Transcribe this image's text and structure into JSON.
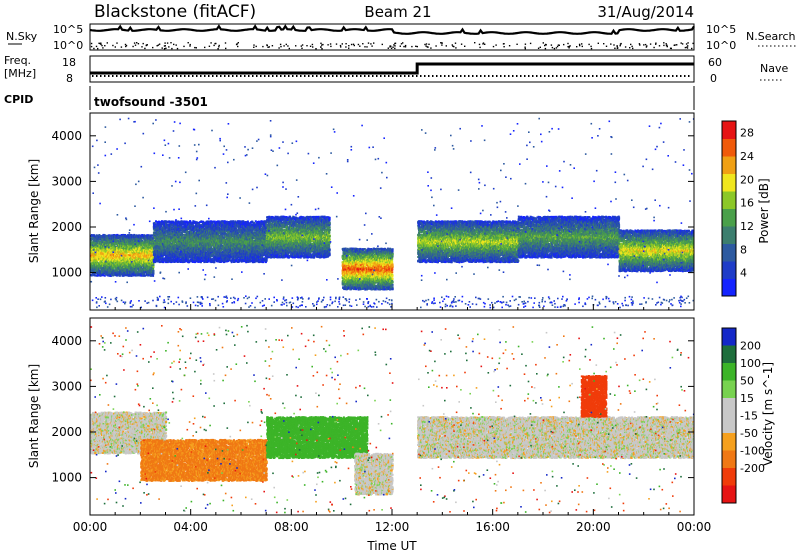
{
  "header": {
    "title": "Blackstone (fitACF)",
    "beam": "Beam 21",
    "date": "31/Aug/2014"
  },
  "summary": {
    "nsky_label": "N.Sky",
    "nsky_ticks": [
      "10^5",
      "10^0"
    ],
    "nsearch_label": "N.Search",
    "nsearch_ticks": [
      "10^5",
      "10^0"
    ],
    "freq_label_1": "Freq.",
    "freq_label_2": "[MHz]",
    "freq_ticks": [
      "18",
      "8"
    ],
    "nave_label": "Nave",
    "nave_ticks": [
      "60",
      "0"
    ],
    "cpid_label": "CPID",
    "cpid_value": "twofsound -3501"
  },
  "chart_data": [
    {
      "type": "heatmap",
      "name": "power",
      "ylabel": "Slant Range [km]",
      "xlabel": "Time UT",
      "ylim": [
        180,
        4500
      ],
      "xlim": [
        0,
        24
      ],
      "x_ticks": [
        "00:00",
        "04:00",
        "08:00",
        "12:00",
        "16:00",
        "20:00",
        "00:00"
      ],
      "y_ticks": [
        1000,
        2000,
        3000,
        4000
      ],
      "colorbar": {
        "label": "Power [dB]",
        "ticks": [
          4,
          8,
          12,
          16,
          20,
          24,
          28
        ],
        "range": [
          0,
          30
        ],
        "colors": [
          "#1424ff",
          "#1e3cc8",
          "#2d5aa0",
          "#3c7e6e",
          "#4aa04a",
          "#8cc828",
          "#f0e61e",
          "#f0a014",
          "#f05a0a",
          "#e61414"
        ]
      },
      "data_gap_ut": [
        12.0,
        13.0
      ],
      "bands": [
        {
          "t_start": 0.0,
          "t_end": 2.5,
          "range_km": 1400,
          "power_db": 22
        },
        {
          "t_start": 2.5,
          "t_end": 7.0,
          "range_km": 1700,
          "power_db": 12
        },
        {
          "t_start": 7.0,
          "t_end": 9.5,
          "range_km": 1800,
          "power_db": 16
        },
        {
          "t_start": 10.0,
          "t_end": 12.0,
          "range_km": 1100,
          "power_db": 26
        },
        {
          "t_start": 13.0,
          "t_end": 17.0,
          "range_km": 1700,
          "power_db": 18
        },
        {
          "t_start": 17.0,
          "t_end": 21.0,
          "range_km": 1800,
          "power_db": 14
        },
        {
          "t_start": 21.0,
          "t_end": 24.0,
          "range_km": 1500,
          "power_db": 20
        }
      ]
    },
    {
      "type": "heatmap",
      "name": "velocity",
      "ylabel": "Slant Range [km]",
      "xlabel": "Time UT",
      "ylim": [
        180,
        4500
      ],
      "xlim": [
        0,
        24
      ],
      "x_ticks": [
        "00:00",
        "04:00",
        "08:00",
        "12:00",
        "16:00",
        "20:00",
        "00:00"
      ],
      "y_ticks": [
        1000,
        2000,
        3000,
        4000
      ],
      "colorbar": {
        "label": "Velocity [m s^-1]",
        "ticks": [
          200,
          100,
          50,
          15,
          -15,
          -50,
          -100,
          -200
        ],
        "range": [
          -250,
          250
        ],
        "colors": [
          "#1428c8",
          "#1e6e3c",
          "#3cb428",
          "#78d250",
          "#c8c8c8",
          "#c8c8c8",
          "#f5a01e",
          "#f07814",
          "#f03c0a",
          "#e61414"
        ]
      },
      "data_gap_ut": [
        12.0,
        13.0
      ],
      "bands": [
        {
          "t_start": 0.0,
          "t_end": 3.0,
          "range_km": 2000,
          "velocity_ms": 0
        },
        {
          "t_start": 2.0,
          "t_end": 7.0,
          "range_km": 1400,
          "velocity_ms": -60
        },
        {
          "t_start": 7.0,
          "t_end": 11.0,
          "range_km": 1900,
          "velocity_ms": 70
        },
        {
          "t_start": 10.5,
          "t_end": 12.0,
          "range_km": 1100,
          "velocity_ms": 0
        },
        {
          "t_start": 13.0,
          "t_end": 24.0,
          "range_km": 1900,
          "velocity_ms": 0
        },
        {
          "t_start": 19.5,
          "t_end": 20.5,
          "range_km": 2800,
          "velocity_ms": -180
        }
      ]
    }
  ],
  "colors": {
    "gap": "#ffffff",
    "ground_scatter": "#a0a0a0"
  }
}
